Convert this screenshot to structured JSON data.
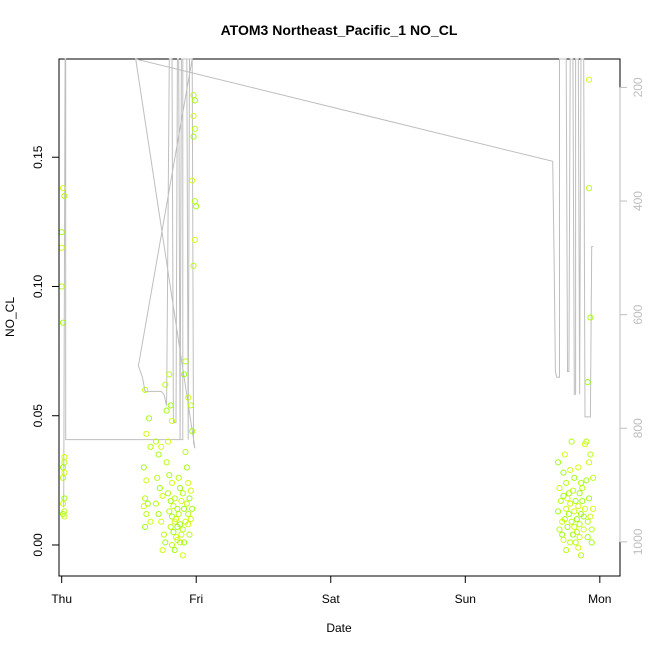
{
  "chart_data": {
    "type": "scatter",
    "title": "ATOM3 Northeast_Pacific_1 NO_CL",
    "xlabel": "Date",
    "ylabel": "NO_CL",
    "xlim": [
      -0.02,
      4.15
    ],
    "ylim": [
      -0.012,
      0.188
    ],
    "x_ticks": [
      {
        "value": 0,
        "label": "Thu"
      },
      {
        "value": 1,
        "label": "Fri"
      },
      {
        "value": 2,
        "label": "Sat"
      },
      {
        "value": 3,
        "label": "Sun"
      },
      {
        "value": 4,
        "label": "Mon"
      }
    ],
    "y_ticks": [
      {
        "value": 0.0,
        "label": "0.00"
      },
      {
        "value": 0.05,
        "label": "0.05"
      },
      {
        "value": 0.1,
        "label": "0.10"
      },
      {
        "value": 0.15,
        "label": "0.15"
      }
    ],
    "right_axis": {
      "note": "pressure (inverted)",
      "range": [
        150,
        1060
      ],
      "ticks": [
        {
          "value": 200,
          "label": "200"
        },
        {
          "value": 400,
          "label": "400"
        },
        {
          "value": 600,
          "label": "600"
        },
        {
          "value": 800,
          "label": "800"
        },
        {
          "value": 1000,
          "label": "1000"
        }
      ]
    },
    "point_colors": [
      "#ccff00",
      "#b3ff00",
      "#99ff00"
    ],
    "line_color": "#bebebe",
    "points": [
      {
        "x": 0.01,
        "y": 0.138
      },
      {
        "x": 0.02,
        "y": 0.135
      },
      {
        "x": 0.0,
        "y": 0.121
      },
      {
        "x": 0.0,
        "y": 0.115
      },
      {
        "x": 0.0,
        "y": 0.1
      },
      {
        "x": 0.01,
        "y": 0.086
      },
      {
        "x": 0.02,
        "y": 0.034
      },
      {
        "x": 0.02,
        "y": 0.032
      },
      {
        "x": 0.01,
        "y": 0.03
      },
      {
        "x": 0.02,
        "y": 0.028
      },
      {
        "x": 0.01,
        "y": 0.026
      },
      {
        "x": 0.02,
        "y": 0.018
      },
      {
        "x": 0.01,
        "y": 0.016
      },
      {
        "x": 0.02,
        "y": 0.013
      },
      {
        "x": 0.01,
        "y": 0.012
      },
      {
        "x": 0.02,
        "y": 0.011
      },
      {
        "x": 0.62,
        "y": 0.06
      },
      {
        "x": 0.65,
        "y": 0.049
      },
      {
        "x": 0.63,
        "y": 0.043
      },
      {
        "x": 0.66,
        "y": 0.038
      },
      {
        "x": 0.61,
        "y": 0.03
      },
      {
        "x": 0.63,
        "y": 0.025
      },
      {
        "x": 0.62,
        "y": 0.018
      },
      {
        "x": 0.64,
        "y": 0.016
      },
      {
        "x": 0.61,
        "y": 0.015
      },
      {
        "x": 0.63,
        "y": 0.012
      },
      {
        "x": 0.62,
        "y": 0.007
      },
      {
        "x": 0.66,
        "y": 0.009
      },
      {
        "x": 0.7,
        "y": 0.04
      },
      {
        "x": 0.72,
        "y": 0.035
      },
      {
        "x": 0.74,
        "y": 0.038
      },
      {
        "x": 0.71,
        "y": 0.026
      },
      {
        "x": 0.73,
        "y": 0.022
      },
      {
        "x": 0.75,
        "y": 0.019
      },
      {
        "x": 0.7,
        "y": 0.016
      },
      {
        "x": 0.72,
        "y": 0.012
      },
      {
        "x": 0.74,
        "y": 0.009
      },
      {
        "x": 0.76,
        "y": 0.004
      },
      {
        "x": 0.77,
        "y": 0.001
      },
      {
        "x": 0.75,
        "y": -0.002
      },
      {
        "x": 0.77,
        "y": 0.062
      },
      {
        "x": 0.78,
        "y": 0.052
      },
      {
        "x": 0.79,
        "y": 0.04
      },
      {
        "x": 0.8,
        "y": 0.066
      },
      {
        "x": 0.81,
        "y": 0.054
      },
      {
        "x": 0.82,
        "y": 0.048
      },
      {
        "x": 0.78,
        "y": 0.032
      },
      {
        "x": 0.8,
        "y": 0.027
      },
      {
        "x": 0.82,
        "y": 0.024
      },
      {
        "x": 0.79,
        "y": 0.02
      },
      {
        "x": 0.81,
        "y": 0.017
      },
      {
        "x": 0.83,
        "y": 0.015
      },
      {
        "x": 0.8,
        "y": 0.013
      },
      {
        "x": 0.82,
        "y": 0.011
      },
      {
        "x": 0.84,
        "y": 0.009
      },
      {
        "x": 0.81,
        "y": 0.007
      },
      {
        "x": 0.83,
        "y": 0.005
      },
      {
        "x": 0.85,
        "y": 0.003
      },
      {
        "x": 0.82,
        "y": 0.0
      },
      {
        "x": 0.84,
        "y": -0.002
      },
      {
        "x": 0.86,
        "y": 0.002
      },
      {
        "x": 0.84,
        "y": 0.018
      },
      {
        "x": 0.86,
        "y": 0.014
      },
      {
        "x": 0.85,
        "y": 0.01
      },
      {
        "x": 0.87,
        "y": 0.026
      },
      {
        "x": 0.88,
        "y": 0.022
      },
      {
        "x": 0.89,
        "y": 0.017
      },
      {
        "x": 0.87,
        "y": 0.012
      },
      {
        "x": 0.88,
        "y": 0.008
      },
      {
        "x": 0.89,
        "y": 0.004
      },
      {
        "x": 0.9,
        "y": 0.02
      },
      {
        "x": 0.91,
        "y": 0.014
      },
      {
        "x": 0.92,
        "y": 0.009
      },
      {
        "x": 0.9,
        "y": 0.006
      },
      {
        "x": 0.91,
        "y": 0.001
      },
      {
        "x": 0.93,
        "y": 0.016
      },
      {
        "x": 0.92,
        "y": 0.036
      },
      {
        "x": 0.93,
        "y": 0.03
      },
      {
        "x": 0.94,
        "y": 0.024
      },
      {
        "x": 0.94,
        "y": 0.012
      },
      {
        "x": 0.95,
        "y": 0.018
      },
      {
        "x": 0.96,
        "y": 0.01
      },
      {
        "x": 0.95,
        "y": 0.004
      },
      {
        "x": 0.97,
        "y": 0.014
      },
      {
        "x": 0.96,
        "y": 0.021
      },
      {
        "x": 0.92,
        "y": 0.071
      },
      {
        "x": 0.91,
        "y": 0.066
      },
      {
        "x": 0.94,
        "y": 0.057
      },
      {
        "x": 0.96,
        "y": 0.054
      },
      {
        "x": 0.97,
        "y": 0.044
      },
      {
        "x": 0.9,
        "y": -0.004
      },
      {
        "x": 0.88,
        "y": 0.001
      },
      {
        "x": 0.86,
        "y": 0.007
      },
      {
        "x": 0.94,
        "y": 0.008
      },
      {
        "x": 0.98,
        "y": 0.174
      },
      {
        "x": 0.99,
        "y": 0.172
      },
      {
        "x": 0.98,
        "y": 0.166
      },
      {
        "x": 0.99,
        "y": 0.161
      },
      {
        "x": 0.98,
        "y": 0.158
      },
      {
        "x": 0.97,
        "y": 0.141
      },
      {
        "x": 0.99,
        "y": 0.133
      },
      {
        "x": 1.0,
        "y": 0.131
      },
      {
        "x": 0.99,
        "y": 0.118
      },
      {
        "x": 0.98,
        "y": 0.108
      },
      {
        "x": 3.69,
        "y": 0.032
      },
      {
        "x": 3.7,
        "y": 0.022
      },
      {
        "x": 3.71,
        "y": 0.017
      },
      {
        "x": 3.69,
        "y": 0.013
      },
      {
        "x": 3.72,
        "y": 0.009
      },
      {
        "x": 3.7,
        "y": 0.006
      },
      {
        "x": 3.73,
        "y": 0.028
      },
      {
        "x": 3.74,
        "y": 0.035
      },
      {
        "x": 3.75,
        "y": 0.024
      },
      {
        "x": 3.73,
        "y": 0.019
      },
      {
        "x": 3.75,
        "y": 0.014
      },
      {
        "x": 3.74,
        "y": 0.01
      },
      {
        "x": 3.76,
        "y": 0.007
      },
      {
        "x": 3.73,
        "y": 0.002
      },
      {
        "x": 3.75,
        "y": -0.002
      },
      {
        "x": 3.77,
        "y": 0.012
      },
      {
        "x": 3.78,
        "y": 0.029
      },
      {
        "x": 3.79,
        "y": 0.04
      },
      {
        "x": 3.77,
        "y": 0.02
      },
      {
        "x": 3.78,
        "y": 0.016
      },
      {
        "x": 3.79,
        "y": 0.009
      },
      {
        "x": 3.8,
        "y": 0.004
      },
      {
        "x": 3.81,
        "y": 0.013
      },
      {
        "x": 3.8,
        "y": 0.021
      },
      {
        "x": 3.82,
        "y": 0.017
      },
      {
        "x": 3.81,
        "y": 0.007
      },
      {
        "x": 3.82,
        "y": 0.001
      },
      {
        "x": 3.83,
        "y": 0.01
      },
      {
        "x": 3.84,
        "y": 0.015
      },
      {
        "x": 3.83,
        "y": 0.005
      },
      {
        "x": 3.85,
        "y": 0.02
      },
      {
        "x": 3.84,
        "y": -0.001
      },
      {
        "x": 3.85,
        "y": 0.008
      },
      {
        "x": 3.86,
        "y": 0.012
      },
      {
        "x": 3.85,
        "y": 0.003
      },
      {
        "x": 3.86,
        "y": -0.004
      },
      {
        "x": 3.87,
        "y": 0.017
      },
      {
        "x": 3.88,
        "y": 0.006
      },
      {
        "x": 3.87,
        "y": 0.022
      },
      {
        "x": 3.88,
        "y": 0.011
      },
      {
        "x": 3.89,
        "y": 0.039
      },
      {
        "x": 3.9,
        "y": 0.04
      },
      {
        "x": 3.9,
        "y": 0.025
      },
      {
        "x": 3.89,
        "y": 0.014
      },
      {
        "x": 3.91,
        "y": 0.009
      },
      {
        "x": 3.91,
        "y": 0.003
      },
      {
        "x": 3.92,
        "y": 0.032
      },
      {
        "x": 3.93,
        "y": 0.035
      },
      {
        "x": 3.92,
        "y": 0.018
      },
      {
        "x": 3.93,
        "y": 0.011
      },
      {
        "x": 3.94,
        "y": 0.006
      },
      {
        "x": 3.94,
        "y": 0.001
      },
      {
        "x": 3.95,
        "y": 0.014
      },
      {
        "x": 3.95,
        "y": 0.026
      },
      {
        "x": 3.72,
        "y": 0.004
      },
      {
        "x": 3.76,
        "y": 0.018
      },
      {
        "x": 3.78,
        "y": 0.001
      },
      {
        "x": 3.81,
        "y": 0.026
      },
      {
        "x": 3.84,
        "y": 0.03
      },
      {
        "x": 3.86,
        "y": 0.024
      },
      {
        "x": 3.91,
        "y": 0.063
      },
      {
        "x": 3.92,
        "y": 0.18
      },
      {
        "x": 3.92,
        "y": 0.138
      },
      {
        "x": 3.93,
        "y": 0.088
      }
    ],
    "pressure_profile": [
      [
        0.015,
        940
      ],
      [
        0.025,
        150
      ],
      [
        0.03,
        150
      ],
      [
        0.03,
        820
      ],
      [
        0.85,
        820
      ],
      [
        0.86,
        820
      ],
      [
        0.9,
        820
      ],
      [
        0.9,
        150
      ],
      [
        0.97,
        150
      ],
      [
        0.57,
        690
      ],
      [
        0.6,
        710
      ],
      [
        0.62,
        735
      ],
      [
        0.74,
        735
      ],
      [
        0.76,
        740
      ],
      [
        0.78,
        760
      ],
      [
        0.8,
        150
      ],
      [
        0.82,
        150
      ],
      [
        0.83,
        790
      ],
      [
        0.85,
        790
      ],
      [
        0.86,
        150
      ],
      [
        0.87,
        150
      ],
      [
        0.88,
        820
      ],
      [
        0.89,
        150
      ],
      [
        0.93,
        150
      ],
      [
        0.94,
        820
      ],
      [
        0.95,
        150
      ],
      [
        0.97,
        150
      ],
      [
        0.98,
        825
      ],
      [
        0.99,
        835
      ],
      [
        0.55,
        150
      ],
      [
        3.65,
        330
      ],
      [
        3.66,
        500
      ],
      [
        3.67,
        700
      ],
      [
        3.68,
        710
      ],
      [
        3.7,
        710
      ],
      [
        3.7,
        150
      ],
      [
        3.75,
        150
      ],
      [
        3.76,
        700
      ],
      [
        3.77,
        700
      ],
      [
        3.78,
        150
      ],
      [
        3.8,
        150
      ],
      [
        3.81,
        740
      ],
      [
        3.82,
        740
      ],
      [
        3.82,
        150
      ],
      [
        3.84,
        150
      ],
      [
        3.85,
        740
      ],
      [
        3.86,
        150
      ],
      [
        3.88,
        150
      ],
      [
        3.89,
        780
      ],
      [
        3.93,
        780
      ],
      [
        3.94,
        480
      ],
      [
        3.95,
        480
      ]
    ]
  }
}
